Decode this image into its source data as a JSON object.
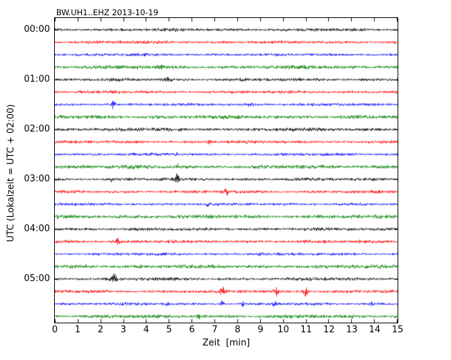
{
  "colors": {
    "black": "#000000",
    "red": "#ff0000",
    "blue": "#0000ff",
    "green": "#008000",
    "axes": "#000000",
    "background": "#ffffff"
  },
  "chart_data": {
    "type": "line",
    "subtype": "helicorder-dayplot",
    "title": "BW.UH1..EHZ 2013-10-19",
    "xlabel": "Zeit  [min]",
    "ylabel": "UTC (Lokalzeit = UTC + 02:00)",
    "x_range": [
      0,
      15
    ],
    "minutes_per_row": 15,
    "x_ticks": [
      "0",
      "1",
      "2",
      "3",
      "4",
      "5",
      "6",
      "7",
      "8",
      "9",
      "10",
      "11",
      "12",
      "13",
      "14",
      "15"
    ],
    "y_ticks": [
      "00:00",
      "01:00",
      "02:00",
      "03:00",
      "04:00",
      "05:00"
    ],
    "rows": [
      {
        "start": "00:00",
        "color": "black",
        "amp": 2.4,
        "events": []
      },
      {
        "start": "00:15",
        "color": "red",
        "amp": 2.4,
        "events": []
      },
      {
        "start": "00:30",
        "color": "blue",
        "amp": 2.2,
        "events": []
      },
      {
        "start": "00:45",
        "color": "green",
        "amp": 3.0,
        "events": []
      },
      {
        "start": "01:00",
        "color": "black",
        "amp": 2.5,
        "events": [
          {
            "t": 4.9,
            "a": 1.0,
            "w": 0.15
          }
        ]
      },
      {
        "start": "01:15",
        "color": "red",
        "amp": 2.4,
        "events": []
      },
      {
        "start": "01:30",
        "color": "blue",
        "amp": 2.2,
        "events": [
          {
            "t": 2.55,
            "a": 3.5,
            "w": 0.06
          },
          {
            "t": 8.6,
            "a": 0.9,
            "w": 0.1
          }
        ]
      },
      {
        "start": "01:45",
        "color": "green",
        "amp": 3.0,
        "events": [
          {
            "t": 4.3,
            "a": 1.1,
            "w": 0.08
          }
        ]
      },
      {
        "start": "02:00",
        "color": "black",
        "amp": 2.8,
        "events": []
      },
      {
        "start": "02:15",
        "color": "red",
        "amp": 2.4,
        "events": [
          {
            "t": 6.8,
            "a": 0.8,
            "w": 0.1
          }
        ]
      },
      {
        "start": "02:30",
        "color": "blue",
        "amp": 2.2,
        "events": [
          {
            "t": 5.3,
            "a": 1.1,
            "w": 0.05
          }
        ]
      },
      {
        "start": "02:45",
        "color": "green",
        "amp": 3.0,
        "events": [
          {
            "t": 5.35,
            "a": 1.4,
            "w": 0.05
          }
        ]
      },
      {
        "start": "03:00",
        "color": "black",
        "amp": 2.5,
        "events": [
          {
            "t": 5.35,
            "a": 4.5,
            "w": 0.05
          },
          {
            "t": 2.5,
            "a": 0.9,
            "w": 0.1
          }
        ]
      },
      {
        "start": "03:15",
        "color": "red",
        "amp": 2.4,
        "events": [
          {
            "t": 7.5,
            "a": 2.0,
            "w": 0.08
          }
        ]
      },
      {
        "start": "03:30",
        "color": "blue",
        "amp": 2.2,
        "events": [
          {
            "t": 6.7,
            "a": 1.0,
            "w": 0.06
          }
        ]
      },
      {
        "start": "03:45",
        "color": "green",
        "amp": 3.0,
        "events": []
      },
      {
        "start": "04:00",
        "color": "black",
        "amp": 2.5,
        "events": []
      },
      {
        "start": "04:15",
        "color": "red",
        "amp": 2.5,
        "events": [
          {
            "t": 2.7,
            "a": 2.2,
            "w": 0.08
          },
          {
            "t": 0.6,
            "a": 0.9,
            "w": 0.08
          }
        ]
      },
      {
        "start": "04:30",
        "color": "blue",
        "amp": 2.2,
        "events": [
          {
            "t": 9.0,
            "a": 0.8,
            "w": 0.1
          }
        ]
      },
      {
        "start": "04:45",
        "color": "green",
        "amp": 3.0,
        "events": []
      },
      {
        "start": "05:00",
        "color": "black",
        "amp": 2.5,
        "events": [
          {
            "t": 2.6,
            "a": 2.8,
            "w": 0.09
          }
        ]
      },
      {
        "start": "05:15",
        "color": "red",
        "amp": 2.5,
        "events": [
          {
            "t": 7.35,
            "a": 3.2,
            "w": 0.07
          },
          {
            "t": 9.7,
            "a": 3.2,
            "w": 0.09
          },
          {
            "t": 11.0,
            "a": 3.0,
            "w": 0.08
          }
        ]
      },
      {
        "start": "05:30",
        "color": "blue",
        "amp": 2.2,
        "events": [
          {
            "t": 7.3,
            "a": 3.0,
            "w": 0.05
          },
          {
            "t": 8.25,
            "a": 2.0,
            "w": 0.05
          },
          {
            "t": 9.6,
            "a": 1.6,
            "w": 0.05
          },
          {
            "t": 13.9,
            "a": 2.2,
            "w": 0.05
          },
          {
            "t": 4.9,
            "a": 1.1,
            "w": 0.05
          }
        ]
      },
      {
        "start": "05:45",
        "color": "green",
        "amp": 2.8,
        "events": [
          {
            "t": 6.3,
            "a": 1.6,
            "w": 0.05
          }
        ]
      }
    ]
  }
}
